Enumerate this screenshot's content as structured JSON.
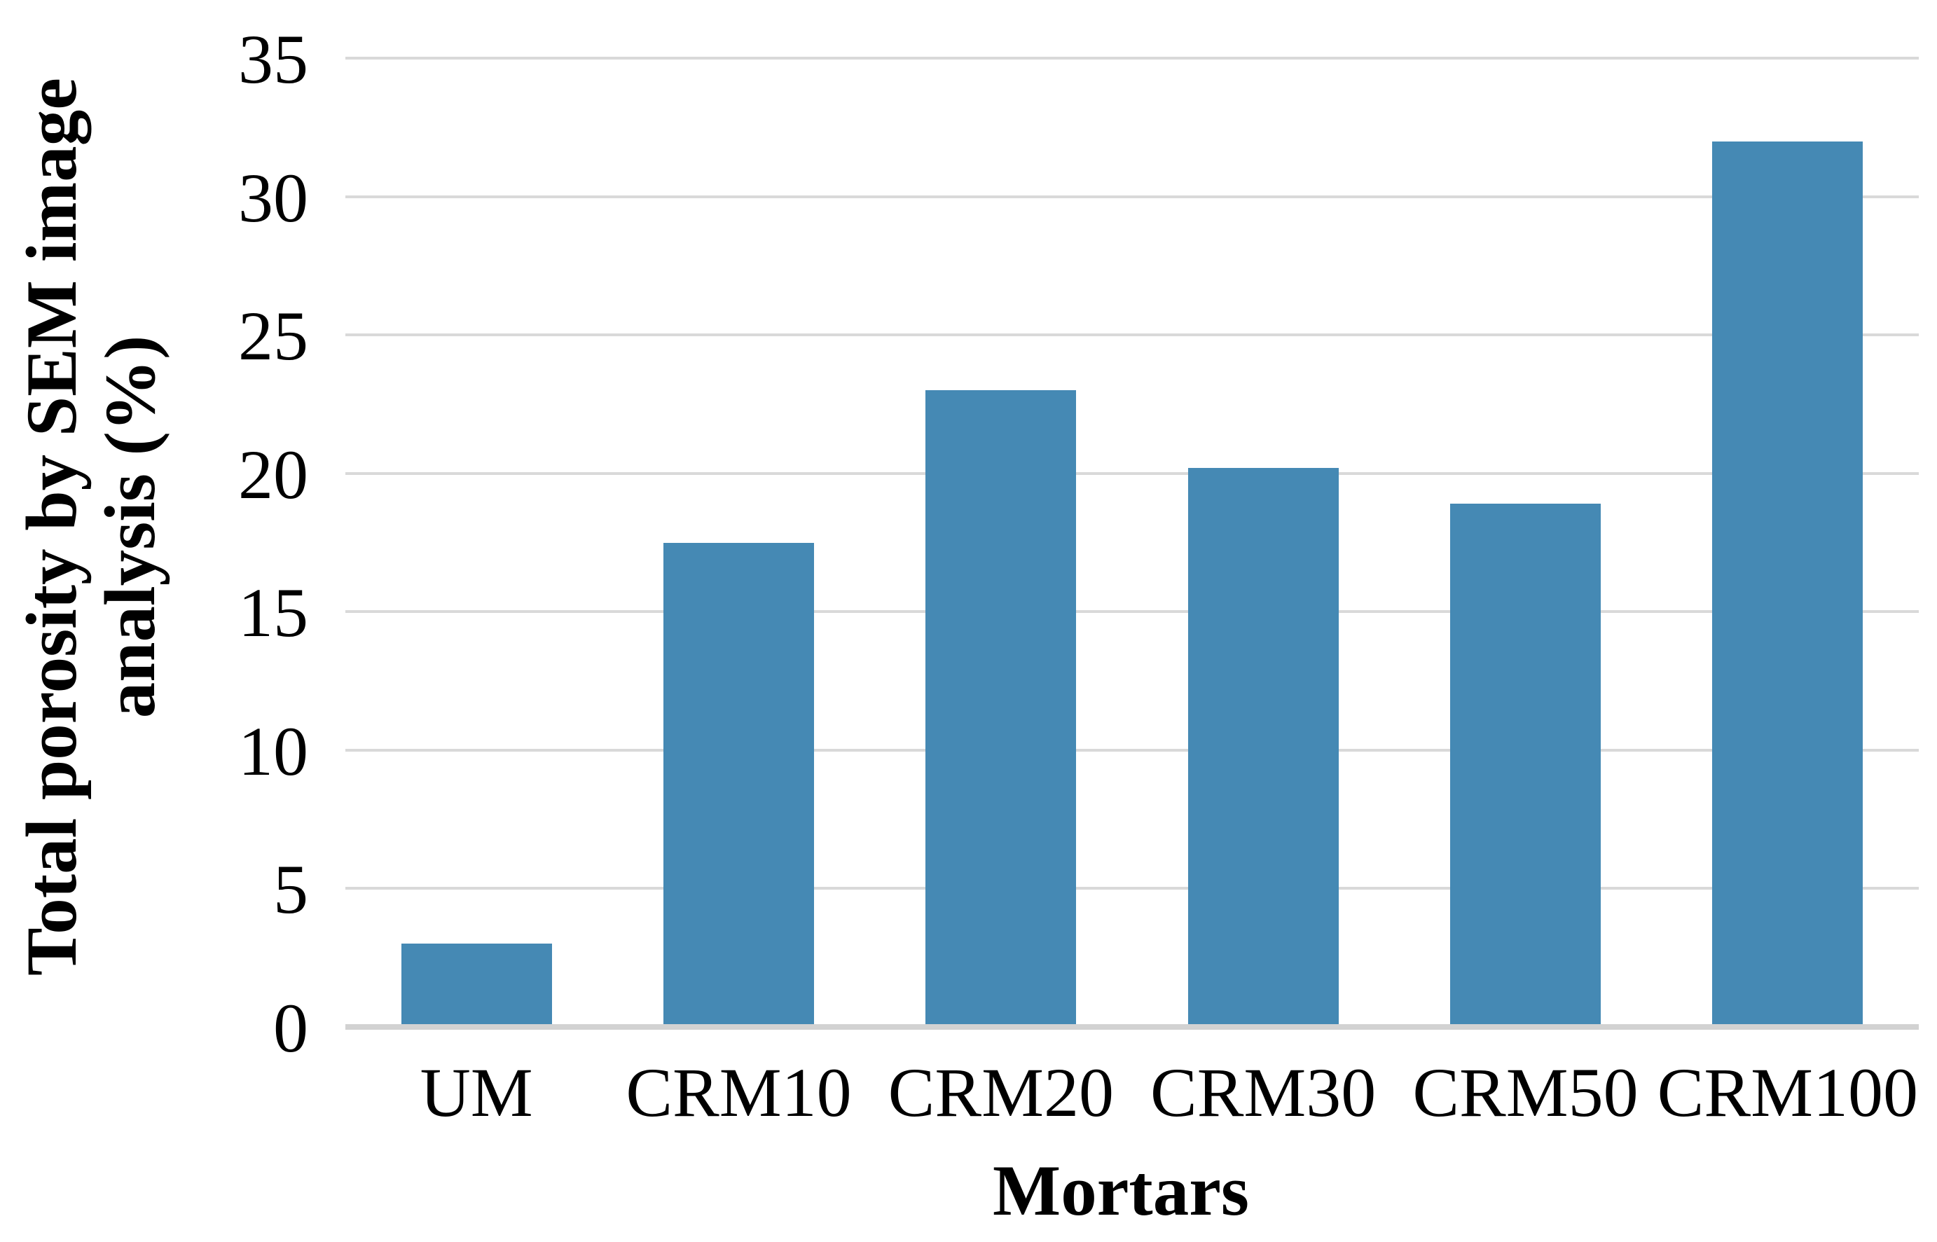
{
  "figure": {
    "background": "#FFFFFF"
  },
  "chart_data": {
    "type": "bar",
    "title": "",
    "categories": [
      "UM",
      "CRM10",
      "CRM20",
      "CRM30",
      "CRM50",
      "CRM100"
    ],
    "values": [
      3.0,
      17.5,
      23.0,
      20.2,
      18.9,
      32.0
    ],
    "xlabel": "Mortars",
    "ylabel": "Total porosity by SEM image analysis (%)",
    "ylabel_lines": [
      "Total porosity by SEM image",
      "analysis (%)"
    ],
    "ylim": [
      0,
      35
    ],
    "yticks": [
      0,
      5,
      10,
      15,
      20,
      25,
      30,
      35
    ],
    "grid": "horizontal",
    "legend": "none",
    "bar_color": "#4589B4",
    "gridline_color": "#D9D9D9",
    "axis_line_color": "#D2D2D2"
  }
}
